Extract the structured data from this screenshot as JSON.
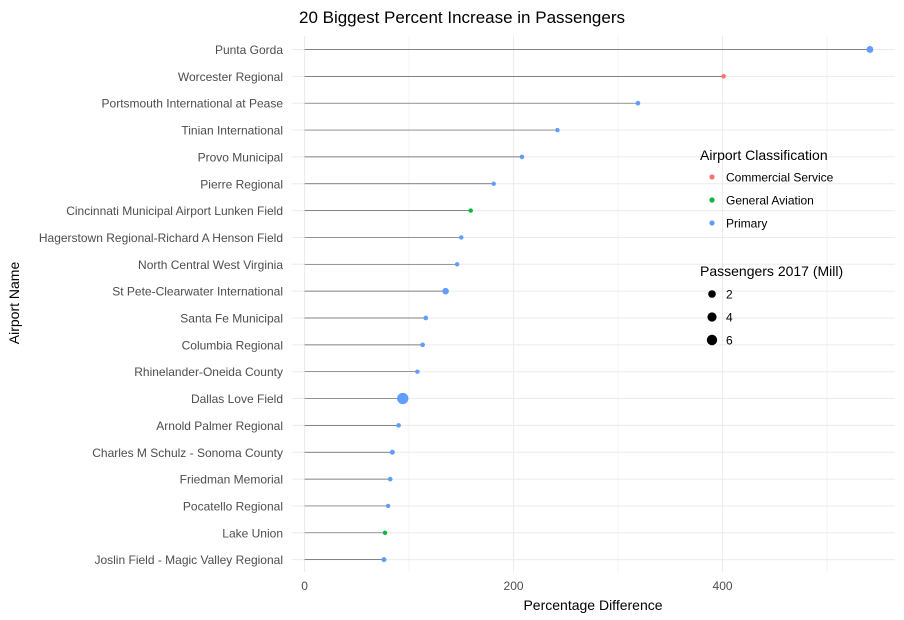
{
  "chart_data": {
    "type": "scatter",
    "subtype": "lollipop",
    "title": "20 Biggest Percent Increase in Passengers",
    "xlabel": "Percentage Difference",
    "ylabel": "Airport Name",
    "xlim": [
      -12,
      565
    ],
    "x_ticks": [
      0,
      200,
      400
    ],
    "grid": true,
    "legend_position": "right",
    "color_legend": {
      "title": "Airport Classification",
      "entries": [
        {
          "label": "Commercial Service",
          "color": "#F8766D"
        },
        {
          "label": "General Aviation",
          "color": "#00BA38"
        },
        {
          "label": "Primary",
          "color": "#619CFF"
        }
      ]
    },
    "size_legend": {
      "title": "Passengers 2017 (Mill)",
      "entries": [
        {
          "label": "2",
          "value": 2
        },
        {
          "label": "4",
          "value": 4
        },
        {
          "label": "6",
          "value": 6
        }
      ]
    },
    "points": [
      {
        "airport": "Punta Gorda",
        "pct_diff": 541,
        "classification": "Primary",
        "passengers_mill": 1.3
      },
      {
        "airport": "Worcester Regional",
        "pct_diff": 401,
        "classification": "Commercial Service",
        "passengers_mill": 0.1
      },
      {
        "airport": "Portsmouth International at Pease",
        "pct_diff": 319,
        "classification": "Primary",
        "passengers_mill": 0.1
      },
      {
        "airport": "Tinian International",
        "pct_diff": 242,
        "classification": "Primary",
        "passengers_mill": 0.05
      },
      {
        "airport": "Provo Municipal",
        "pct_diff": 208,
        "classification": "Primary",
        "passengers_mill": 0.1
      },
      {
        "airport": "Pierre Regional",
        "pct_diff": 181,
        "classification": "Primary",
        "passengers_mill": 0.05
      },
      {
        "airport": "Cincinnati Municipal Airport Lunken Field",
        "pct_diff": 159,
        "classification": "General Aviation",
        "passengers_mill": 0.05
      },
      {
        "airport": "Hagerstown Regional-Richard A Henson Field",
        "pct_diff": 150,
        "classification": "Primary",
        "passengers_mill": 0.05
      },
      {
        "airport": "North Central West Virginia",
        "pct_diff": 146,
        "classification": "Primary",
        "passengers_mill": 0.05
      },
      {
        "airport": "St Pete-Clearwater International",
        "pct_diff": 135,
        "classification": "Primary",
        "passengers_mill": 1.0
      },
      {
        "airport": "Santa Fe Municipal",
        "pct_diff": 116,
        "classification": "Primary",
        "passengers_mill": 0.1
      },
      {
        "airport": "Columbia Regional",
        "pct_diff": 113,
        "classification": "Primary",
        "passengers_mill": 0.1
      },
      {
        "airport": "Rhinelander-Oneida County",
        "pct_diff": 108,
        "classification": "Primary",
        "passengers_mill": 0.05
      },
      {
        "airport": "Dallas Love Field",
        "pct_diff": 94,
        "classification": "Primary",
        "passengers_mill": 7.8
      },
      {
        "airport": "Arnold Palmer Regional",
        "pct_diff": 90,
        "classification": "Primary",
        "passengers_mill": 0.1
      },
      {
        "airport": "Charles M Schulz - Sonoma County",
        "pct_diff": 84,
        "classification": "Primary",
        "passengers_mill": 0.2
      },
      {
        "airport": "Friedman Memorial",
        "pct_diff": 82,
        "classification": "Primary",
        "passengers_mill": 0.1
      },
      {
        "airport": "Pocatello Regional",
        "pct_diff": 80,
        "classification": "Primary",
        "passengers_mill": 0.05
      },
      {
        "airport": "Lake Union",
        "pct_diff": 77,
        "classification": "General Aviation",
        "passengers_mill": 0.05
      },
      {
        "airport": "Joslin Field - Magic Valley Regional",
        "pct_diff": 76,
        "classification": "Primary",
        "passengers_mill": 0.2
      }
    ]
  }
}
